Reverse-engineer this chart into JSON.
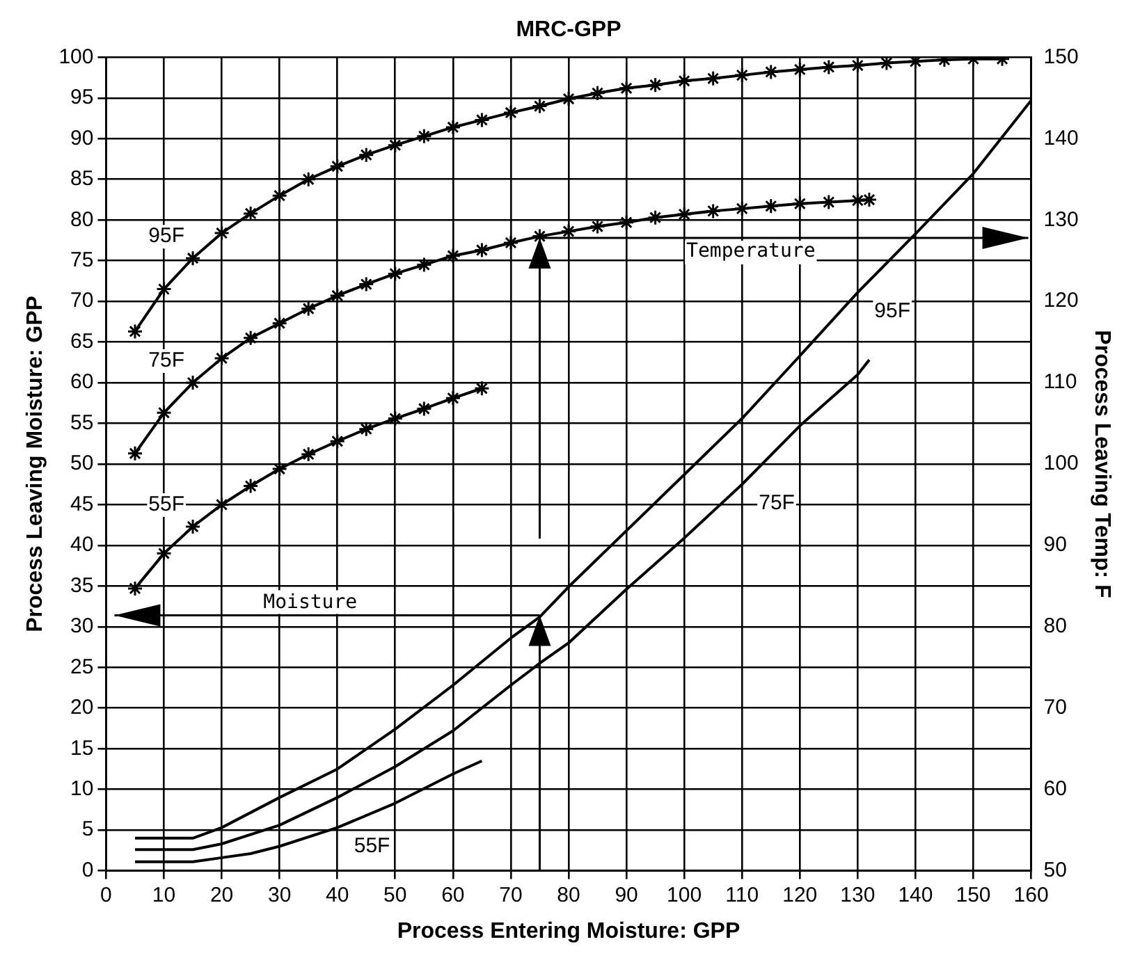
{
  "chart_data": {
    "type": "line",
    "title": "MRC-GPP",
    "xlabel": "Process Entering Moisture: GPP",
    "ylabel": "Process Leaving Moisture: GPP",
    "y2label": "Process Leaving Temp: F",
    "xlim": [
      0,
      160
    ],
    "xticks": [
      0,
      10,
      20,
      30,
      40,
      50,
      60,
      70,
      80,
      90,
      100,
      110,
      120,
      130,
      140,
      150,
      160
    ],
    "ylim": [
      0,
      100
    ],
    "yticks": [
      0,
      5,
      10,
      15,
      20,
      25,
      30,
      35,
      40,
      45,
      50,
      55,
      60,
      65,
      70,
      75,
      80,
      85,
      90,
      95,
      100
    ],
    "y2lim": [
      50,
      150
    ],
    "y2ticks": [
      50,
      60,
      70,
      80,
      90,
      100,
      110,
      120,
      130,
      140,
      150
    ],
    "grid": true,
    "legend": false,
    "line_style": "solid",
    "series": [
      {
        "name": "95F",
        "color": "#000000",
        "axis": "y2",
        "marker": "cross",
        "x": [
          5,
          10,
          15,
          20,
          25,
          30,
          35,
          40,
          45,
          50,
          55,
          60,
          65,
          70,
          75,
          80,
          85,
          90,
          95,
          100,
          105,
          110,
          115,
          120,
          125,
          130,
          135,
          140,
          145,
          150,
          155
        ],
        "values": [
          116.3,
          121.5,
          125.3,
          128.4,
          130.8,
          133,
          135,
          136.6,
          138,
          139.2,
          140.3,
          141.4,
          142.3,
          143.2,
          144,
          144.9,
          145.6,
          146.2,
          146.6,
          147.1,
          147.4,
          147.8,
          148.2,
          148.5,
          148.8,
          149,
          149.3,
          149.5,
          149.7,
          149.8,
          149.8
        ]
      },
      {
        "name": "75F",
        "color": "#000000",
        "axis": "y2",
        "marker": "cross",
        "x": [
          5,
          10,
          15,
          20,
          25,
          30,
          35,
          40,
          45,
          50,
          55,
          60,
          65,
          70,
          75,
          80,
          85,
          90,
          95,
          100,
          105,
          110,
          115,
          120,
          125,
          130,
          132
        ],
        "values": [
          101.3,
          106.3,
          110,
          113,
          115.5,
          117.3,
          119.1,
          120.7,
          122.1,
          123.4,
          124.5,
          125.6,
          126.3,
          127.2,
          128,
          128.6,
          129.2,
          129.7,
          130.3,
          130.7,
          131.1,
          131.4,
          131.7,
          132,
          132.2,
          132.4,
          132.5
        ]
      },
      {
        "name": "55F",
        "color": "#000000",
        "axis": "y2",
        "marker": "cross",
        "x": [
          5,
          10,
          15,
          20,
          25,
          30,
          35,
          40,
          45,
          50,
          55,
          60,
          65
        ],
        "values": [
          84.7,
          89,
          92.3,
          95,
          97.3,
          99.4,
          101.2,
          102.8,
          104.3,
          105.6,
          106.8,
          108.1,
          109.3
        ]
      },
      {
        "name": "95F",
        "color": "#000000",
        "axis": "y",
        "marker": "none",
        "x": [
          5,
          15,
          20,
          30,
          40,
          50,
          60,
          70,
          75,
          80,
          90,
          100,
          110,
          120,
          130,
          140,
          150,
          160
        ],
        "values": [
          4,
          4,
          5.3,
          9,
          12.5,
          17.4,
          22.8,
          28.6,
          31.2,
          34.9,
          41.8,
          48.7,
          55.6,
          63.3,
          71.1,
          78.3,
          85.7,
          94.7
        ]
      },
      {
        "name": "75F",
        "color": "#000000",
        "axis": "y",
        "marker": "none",
        "x": [
          5,
          15,
          20,
          30,
          40,
          50,
          60,
          70,
          75,
          80,
          90,
          100,
          110,
          120,
          130,
          132
        ],
        "values": [
          2.6,
          2.6,
          3.3,
          5.6,
          9,
          12.8,
          17.2,
          22.8,
          25.5,
          28,
          34.6,
          40.9,
          47.5,
          54.7,
          61,
          62.8
        ]
      },
      {
        "name": "55F",
        "color": "#000000",
        "axis": "y",
        "marker": "none",
        "x": [
          5,
          15,
          20,
          25,
          30,
          40,
          50,
          60,
          65
        ],
        "values": [
          1.1,
          1.1,
          1.6,
          2.1,
          3,
          5.3,
          8.3,
          11.9,
          13.5
        ]
      }
    ],
    "ref_lines": [
      {
        "axis": "x",
        "value": 75
      },
      {
        "axis": "y",
        "value": 31.4,
        "label": "Moisture"
      },
      {
        "axis": "y2",
        "value": 127.8,
        "label": "Temperature"
      }
    ]
  }
}
